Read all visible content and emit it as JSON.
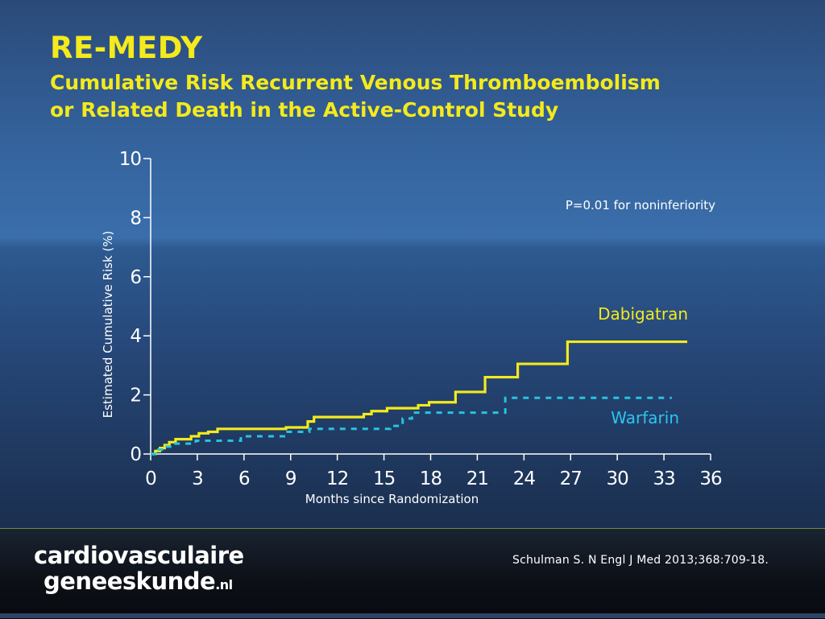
{
  "slide": {
    "title": "RE-MEDY",
    "subtitle_line1": "Cumulative Risk Recurrent Venous Thromboembolism",
    "subtitle_line2": "or Related Death in the Active-Control Study"
  },
  "footer": {
    "logo_line1": "cardiovasculaire",
    "logo_line2": "geneeskunde",
    "logo_tld": ".nl",
    "citation": "Schulman S. N Engl J Med 2013;368:709-18."
  },
  "colors": {
    "title": "#f4ea1c",
    "dabigatran": "#f4ea1c",
    "warfarin": "#27c4e0",
    "warfarin_label": "#2cc5f0",
    "axis": "#ffffff"
  },
  "chart_data": {
    "type": "line",
    "title": "",
    "xlabel": "Months since Randomization",
    "ylabel": "Estimated Cumulative Risk (%)",
    "xlim": [
      0,
      36
    ],
    "ylim": [
      0,
      10
    ],
    "xticks": [
      0,
      3,
      6,
      9,
      12,
      15,
      18,
      21,
      24,
      27,
      30,
      33,
      36
    ],
    "yticks": [
      0,
      2,
      4,
      6,
      8,
      10
    ],
    "grid": false,
    "annotation": "P=0.01 for noninferiority",
    "step": true,
    "series": [
      {
        "name": "Dabigatran",
        "style": "solid",
        "x": [
          0,
          0.3,
          0.6,
          0.9,
          1.2,
          1.6,
          2.6,
          3.1,
          3.7,
          4.3,
          8.7,
          10.1,
          10.5,
          13.7,
          14.2,
          15.2,
          17.2,
          17.9,
          19.6,
          21.5,
          23.6,
          26.8,
          34.5
        ],
        "y": [
          0,
          0.1,
          0.2,
          0.3,
          0.4,
          0.5,
          0.6,
          0.7,
          0.75,
          0.85,
          0.9,
          1.1,
          1.25,
          1.35,
          1.45,
          1.55,
          1.65,
          1.75,
          2.1,
          2.6,
          3.05,
          3.8,
          3.8
        ]
      },
      {
        "name": "Warfarin",
        "style": "dashed",
        "x": [
          0,
          0.5,
          1.0,
          1.4,
          2.9,
          5.8,
          8.8,
          10.2,
          15.4,
          16.2,
          16.8,
          22.8,
          33.5
        ],
        "y": [
          0,
          0.15,
          0.25,
          0.35,
          0.45,
          0.6,
          0.75,
          0.85,
          0.95,
          1.2,
          1.4,
          1.9,
          1.9
        ]
      }
    ]
  }
}
